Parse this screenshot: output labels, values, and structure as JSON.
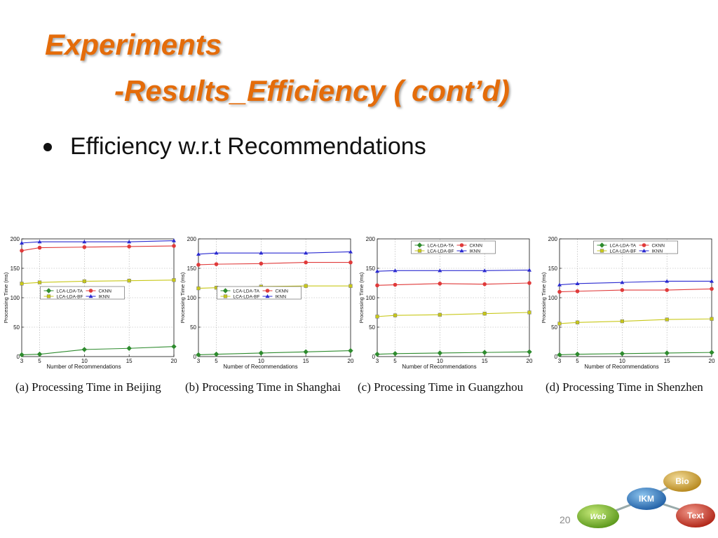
{
  "slide": {
    "title": "Experiments",
    "subtitle": "-Results_Efficiency ( cont’d)",
    "bullet": "Efficiency w.r.t Recommendations",
    "page_number": "20"
  },
  "colors": {
    "title": "#E46C0A",
    "LCA-LDA-TA": "#2e8b2e",
    "LCA-LDA-BF": "#c8c818",
    "CKNN": "#e03a3a",
    "IKNN": "#2a2ad0"
  },
  "logo": {
    "bubbles": [
      "Bio",
      "IKM",
      "Web",
      "Text"
    ]
  },
  "chart_data": [
    {
      "type": "line",
      "caption": "(a) Processing Time in Beijing",
      "x": [
        3,
        5,
        10,
        15,
        20
      ],
      "xlabel": "Number of Recommendations",
      "ylabel": "Processing Time (ms)",
      "ylim": [
        0,
        200
      ],
      "yticks": [
        0,
        50,
        100,
        150,
        200
      ],
      "legend_position": "center",
      "series": [
        {
          "name": "LCA-LDA-TA",
          "marker": "diamond",
          "values": [
            3,
            4,
            12,
            14,
            17
          ]
        },
        {
          "name": "CKNN",
          "marker": "circle",
          "values": [
            180,
            185,
            186,
            187,
            188
          ]
        },
        {
          "name": "LCA-LDA-BF",
          "marker": "square",
          "values": [
            124,
            126,
            128,
            129,
            130
          ]
        },
        {
          "name": "IKNN",
          "marker": "triangle",
          "values": [
            193,
            195,
            195,
            195,
            197
          ]
        }
      ]
    },
    {
      "type": "line",
      "caption": "(b) Processing Time in Shanghai",
      "x": [
        3,
        5,
        10,
        15,
        20
      ],
      "xlabel": "Number of Recommendations",
      "ylabel": "Processing Time (ms)",
      "ylim": [
        0,
        200
      ],
      "yticks": [
        0,
        50,
        100,
        150,
        200
      ],
      "legend_position": "center",
      "series": [
        {
          "name": "LCA-LDA-TA",
          "marker": "diamond",
          "values": [
            3,
            4,
            6,
            8,
            10
          ]
        },
        {
          "name": "CKNN",
          "marker": "circle",
          "values": [
            156,
            157,
            158,
            160,
            160
          ]
        },
        {
          "name": "LCA-LDA-BF",
          "marker": "square",
          "values": [
            116,
            117,
            119,
            120,
            120
          ]
        },
        {
          "name": "IKNN",
          "marker": "triangle",
          "values": [
            174,
            176,
            176,
            176,
            178
          ]
        }
      ]
    },
    {
      "type": "line",
      "caption": "(c) Processing Time in Guangzhou",
      "x": [
        3,
        5,
        10,
        15,
        20
      ],
      "xlabel": "Number of Recommendations",
      "ylabel": "Processing Time (ms)",
      "ylim": [
        0,
        200
      ],
      "yticks": [
        0,
        50,
        100,
        150,
        200
      ],
      "legend_position": "top-center",
      "series": [
        {
          "name": "LCA-LDA-TA",
          "marker": "diamond",
          "values": [
            4,
            5,
            6,
            7,
            8
          ]
        },
        {
          "name": "CKNN",
          "marker": "circle",
          "values": [
            121,
            122,
            124,
            123,
            125
          ]
        },
        {
          "name": "LCA-LDA-BF",
          "marker": "square",
          "values": [
            68,
            70,
            71,
            73,
            75
          ]
        },
        {
          "name": "IKNN",
          "marker": "triangle",
          "values": [
            145,
            146,
            146,
            146,
            147
          ]
        }
      ]
    },
    {
      "type": "line",
      "caption": "(d) Processing Time in Shenzhen",
      "x": [
        3,
        5,
        10,
        15,
        20
      ],
      "xlabel": "Number of Recommendations",
      "ylabel": "Processing Time (ms)",
      "ylim": [
        0,
        200
      ],
      "yticks": [
        0,
        50,
        100,
        150,
        200
      ],
      "legend_position": "top-center",
      "series": [
        {
          "name": "LCA-LDA-TA",
          "marker": "diamond",
          "values": [
            3,
            4,
            5,
            6,
            7
          ]
        },
        {
          "name": "CKNN",
          "marker": "circle",
          "values": [
            110,
            111,
            113,
            113,
            115
          ]
        },
        {
          "name": "LCA-LDA-BF",
          "marker": "square",
          "values": [
            56,
            58,
            60,
            63,
            64
          ]
        },
        {
          "name": "IKNN",
          "marker": "triangle",
          "values": [
            122,
            124,
            126,
            128,
            128
          ]
        }
      ]
    }
  ]
}
